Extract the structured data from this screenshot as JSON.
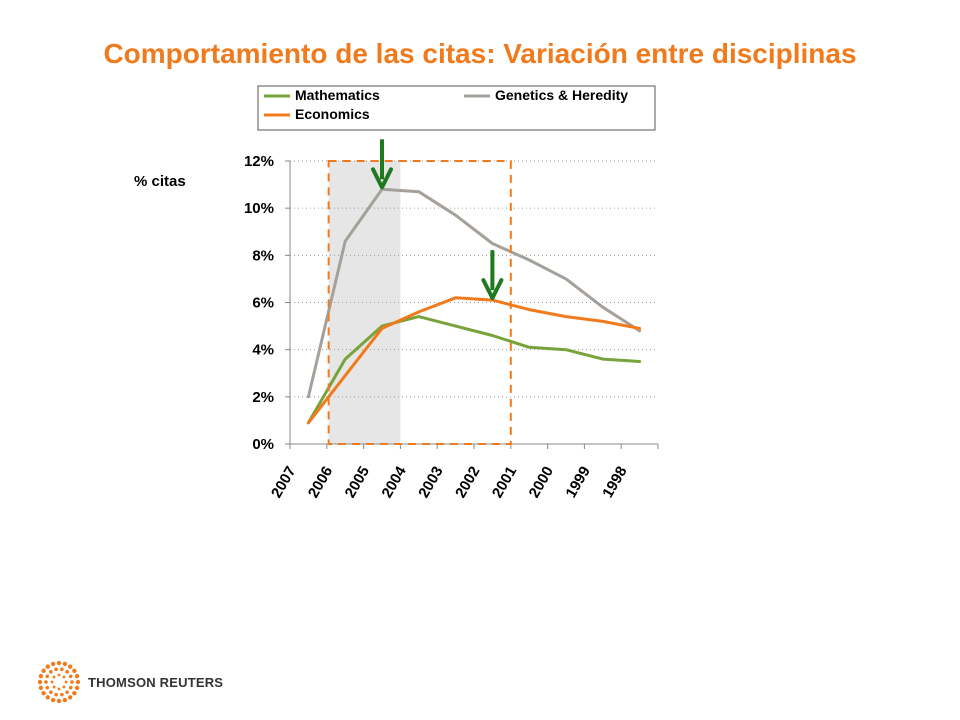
{
  "title": "Comportamiento de las citas: Variación entre disciplinas",
  "brand": {
    "name": "THOMSON REUTERS",
    "logo_icon": "thomson-reuters-dot-ring-icon",
    "logo_color": "#f07a1c"
  },
  "colors": {
    "title": "#f07a1c",
    "arrow": "#1f7a1f",
    "highlight_fill": "#e6e6e6",
    "box": "#f07a1c"
  },
  "chart_data": {
    "type": "line",
    "title": "",
    "xlabel": "",
    "ylabel": "% citas",
    "categories": [
      "2007",
      "2006",
      "2005",
      "2004",
      "2003",
      "2002",
      "2001",
      "2000",
      "1999",
      "1998"
    ],
    "ylim": [
      0,
      12
    ],
    "yticks": [
      "0%",
      "2%",
      "4%",
      "6%",
      "8%",
      "10%",
      "12%"
    ],
    "grid": true,
    "legend_position": "top",
    "series": [
      {
        "name": "Mathematics",
        "color": "#76a33a",
        "values": [
          0.9,
          3.6,
          5.0,
          5.4,
          5.0,
          4.6,
          4.1,
          4.0,
          3.6,
          3.5
        ]
      },
      {
        "name": "Genetics & Heredity",
        "color": "#a6a09a",
        "values": [
          2.0,
          8.6,
          10.8,
          10.7,
          9.7,
          8.5,
          7.8,
          7.0,
          5.8,
          4.8
        ]
      },
      {
        "name": "Economics",
        "color": "#f07a1c",
        "values": [
          0.9,
          2.9,
          4.9,
          5.6,
          6.2,
          6.1,
          5.7,
          5.4,
          5.2,
          4.9
        ]
      }
    ],
    "highlight_band": {
      "from": "2006",
      "to": "2004"
    },
    "dashed_box": {
      "from": "2006",
      "to": "2001"
    },
    "arrows": [
      {
        "at": "2005",
        "series": "Genetics & Heredity"
      },
      {
        "at": "2002",
        "series": "Economics"
      }
    ]
  }
}
